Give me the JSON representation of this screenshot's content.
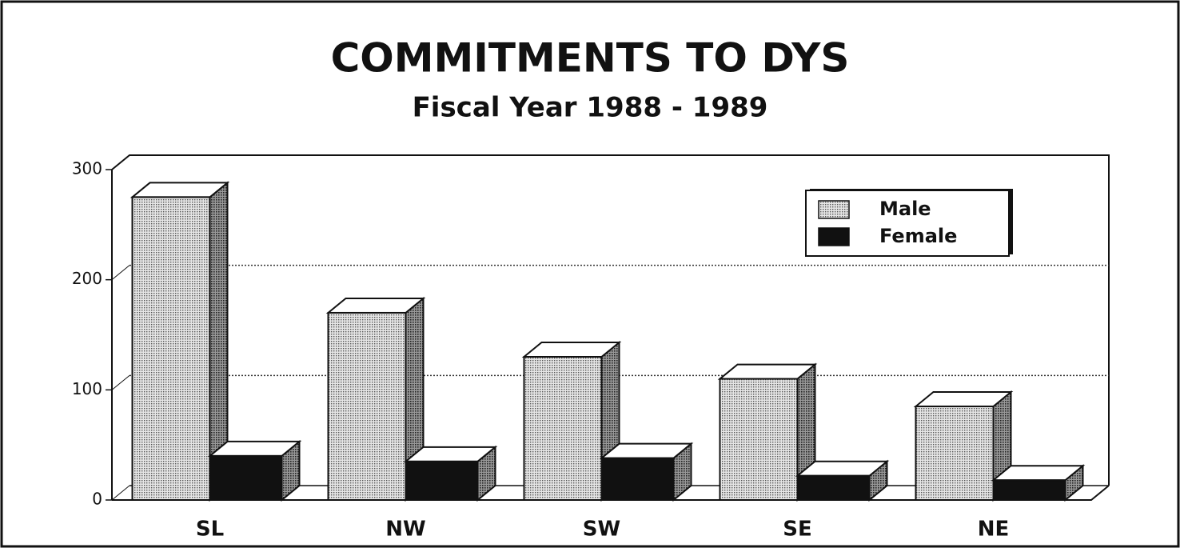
{
  "chart_data": {
    "type": "bar3d",
    "title": "COMMITMENTS TO DYS",
    "subtitle": "Fiscal Year 1988 - 1989",
    "categories": [
      "SL",
      "NW",
      "SW",
      "SE",
      "NE"
    ],
    "series": [
      {
        "name": "Male",
        "color": "#b4b4b4",
        "values": [
          275,
          170,
          130,
          110,
          85
        ]
      },
      {
        "name": "Female",
        "color": "#111111",
        "values": [
          40,
          35,
          38,
          22,
          18
        ]
      }
    ],
    "ylim": [
      0,
      300
    ],
    "yticks": [
      0,
      100,
      200,
      300
    ],
    "grid": true,
    "legend": "upper right"
  }
}
